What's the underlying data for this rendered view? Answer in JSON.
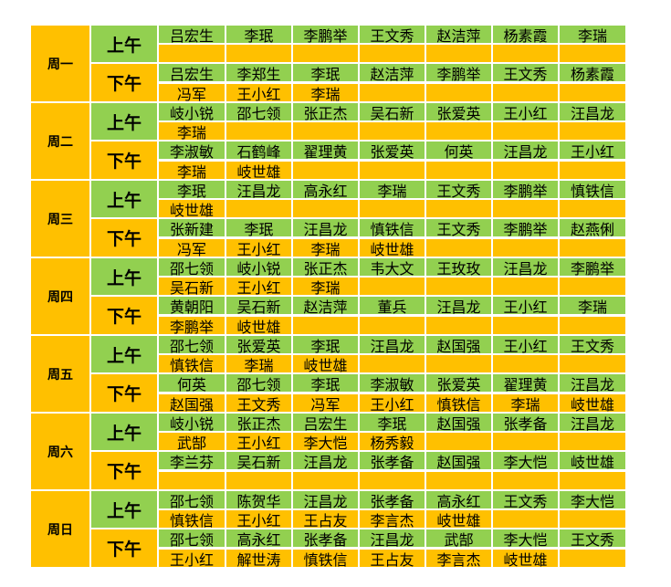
{
  "period_labels": {
    "am": "上午",
    "pm": "下午"
  },
  "days": [
    {
      "label": "周一",
      "am": [
        [
          "吕宏生",
          "李珉",
          "李鹏举",
          "王文秀",
          "赵洁萍",
          "杨素霞",
          "李瑞"
        ],
        [
          "",
          "",
          "",
          "",
          "",
          "",
          ""
        ]
      ],
      "pm": [
        [
          "吕宏生",
          "李郑生",
          "李珉",
          "赵洁萍",
          "李鹏举",
          "王文秀",
          "杨素霞"
        ],
        [
          "冯军",
          "王小红",
          "李瑞",
          "",
          "",
          "",
          ""
        ]
      ]
    },
    {
      "label": "周二",
      "am": [
        [
          "岐小锐",
          "邵七领",
          "张正杰",
          "吴石新",
          "张爱英",
          "王小红",
          "汪昌龙"
        ],
        [
          "李瑞",
          "",
          "",
          "",
          "",
          "",
          ""
        ]
      ],
      "pm": [
        [
          "李淑敏",
          "石鹤峰",
          "翟理黄",
          "张爱英",
          "何英",
          "汪昌龙",
          "王小红"
        ],
        [
          "李瑞",
          "岐世雄",
          "",
          "",
          "",
          "",
          ""
        ]
      ]
    },
    {
      "label": "周三",
      "am": [
        [
          "李珉",
          "汪昌龙",
          "高永红",
          "李瑞",
          "王文秀",
          "李鹏举",
          "慎铁信"
        ],
        [
          "岐世雄",
          "",
          "",
          "",
          "",
          "",
          ""
        ]
      ],
      "pm": [
        [
          "张新建",
          "李珉",
          "汪昌龙",
          "慎铁信",
          "王文秀",
          "李鹏举",
          "赵燕俐"
        ],
        [
          "冯军",
          "王小红",
          "李瑞",
          "岐世雄",
          "",
          "",
          ""
        ]
      ]
    },
    {
      "label": "周四",
      "am": [
        [
          "邵七领",
          "岐小锐",
          "张正杰",
          "韦大文",
          "王玫玫",
          "汪昌龙",
          "李鹏举"
        ],
        [
          "吴石新",
          "王小红",
          "李瑞",
          "",
          "",
          "",
          ""
        ]
      ],
      "pm": [
        [
          "黄朝阳",
          "吴石新",
          "赵洁萍",
          "董兵",
          "汪昌龙",
          "王小红",
          "李瑞"
        ],
        [
          "李鹏举",
          "岐世雄",
          "",
          "",
          "",
          "",
          ""
        ]
      ]
    },
    {
      "label": "周五",
      "am": [
        [
          "邵七领",
          "张爱英",
          "李珉",
          "汪昌龙",
          "赵国强",
          "王小红",
          "王文秀"
        ],
        [
          "慎铁信",
          "李瑞",
          "岐世雄",
          "",
          "",
          "",
          ""
        ]
      ],
      "pm": [
        [
          "何英",
          "邵七领",
          "李珉",
          "李淑敏",
          "张爱英",
          "翟理黄",
          "汪昌龙"
        ],
        [
          "赵国强",
          "王文秀",
          "冯军",
          "王小红",
          "慎铁信",
          "李瑞",
          "岐世雄"
        ]
      ]
    },
    {
      "label": "周六",
      "am": [
        [
          "岐小锐",
          "张正杰",
          "吕宏生",
          "李珉",
          "赵国强",
          "张孝备",
          "汪昌龙"
        ],
        [
          "武郜",
          "王小红",
          "李大恺",
          "杨秀毅",
          "",
          "",
          ""
        ]
      ],
      "pm": [
        [
          "李兰芬",
          "吴石新",
          "汪昌龙",
          "张孝备",
          "赵国强",
          "李大恺",
          "岐世雄"
        ],
        [
          "",
          "",
          "",
          "",
          "",
          "",
          ""
        ]
      ]
    },
    {
      "label": "周日",
      "am": [
        [
          "邵七领",
          "陈贺华",
          "汪昌龙",
          "张孝备",
          "高永红",
          "王文秀",
          "李大恺"
        ],
        [
          "慎铁信",
          "王小红",
          "王占友",
          "李言杰",
          "岐世雄",
          "",
          ""
        ]
      ],
      "pm": [
        [
          "邵七领",
          "高永红",
          "张孝备",
          "汪昌龙",
          "武郜",
          "李大恺",
          "王文秀"
        ],
        [
          "王小红",
          "解世涛",
          "慎铁信",
          "王占友",
          "李言杰",
          "岐世雄",
          ""
        ]
      ]
    }
  ],
  "colors": {
    "green": "#92D050",
    "orange": "#FFC000"
  }
}
